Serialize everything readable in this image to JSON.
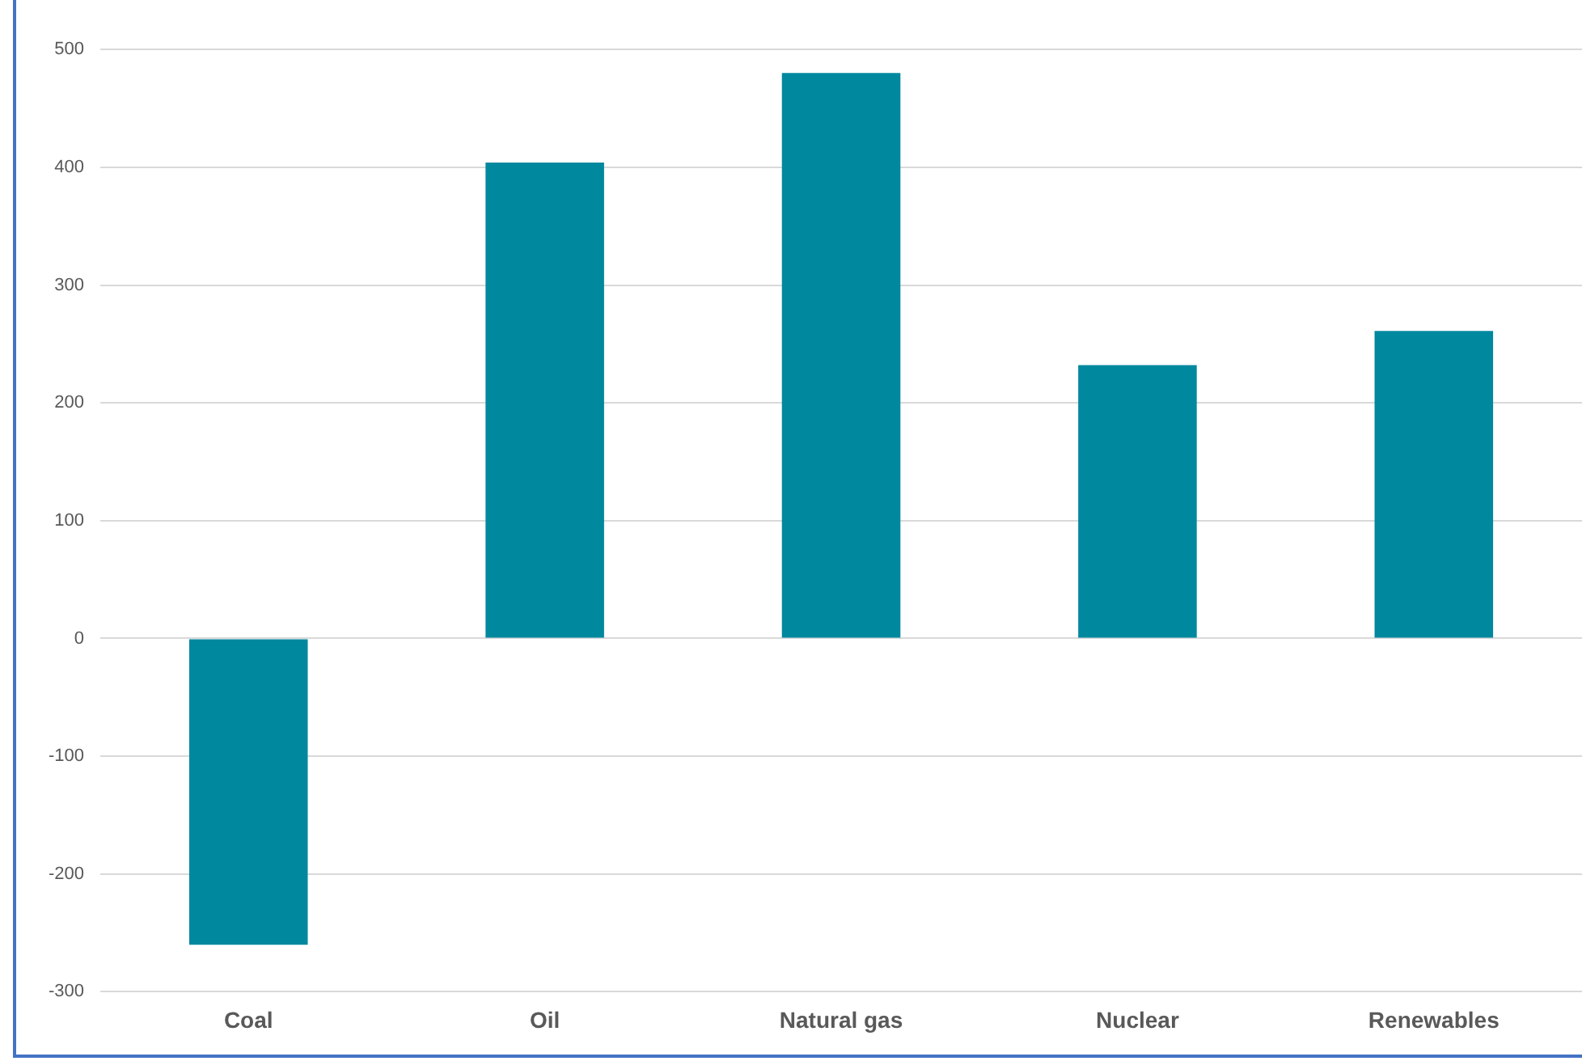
{
  "chart_data": {
    "type": "bar",
    "categories": [
      "Coal",
      "Oil",
      "Natural gas",
      "Nuclear",
      "Renewables"
    ],
    "values": [
      -260,
      404,
      480,
      232,
      261
    ],
    "color": "#00889e",
    "ylim": [
      -300,
      500
    ],
    "yticks": [
      -300,
      -200,
      -100,
      0,
      100,
      200,
      300,
      400,
      500
    ],
    "grid": "y",
    "legend": false
  }
}
